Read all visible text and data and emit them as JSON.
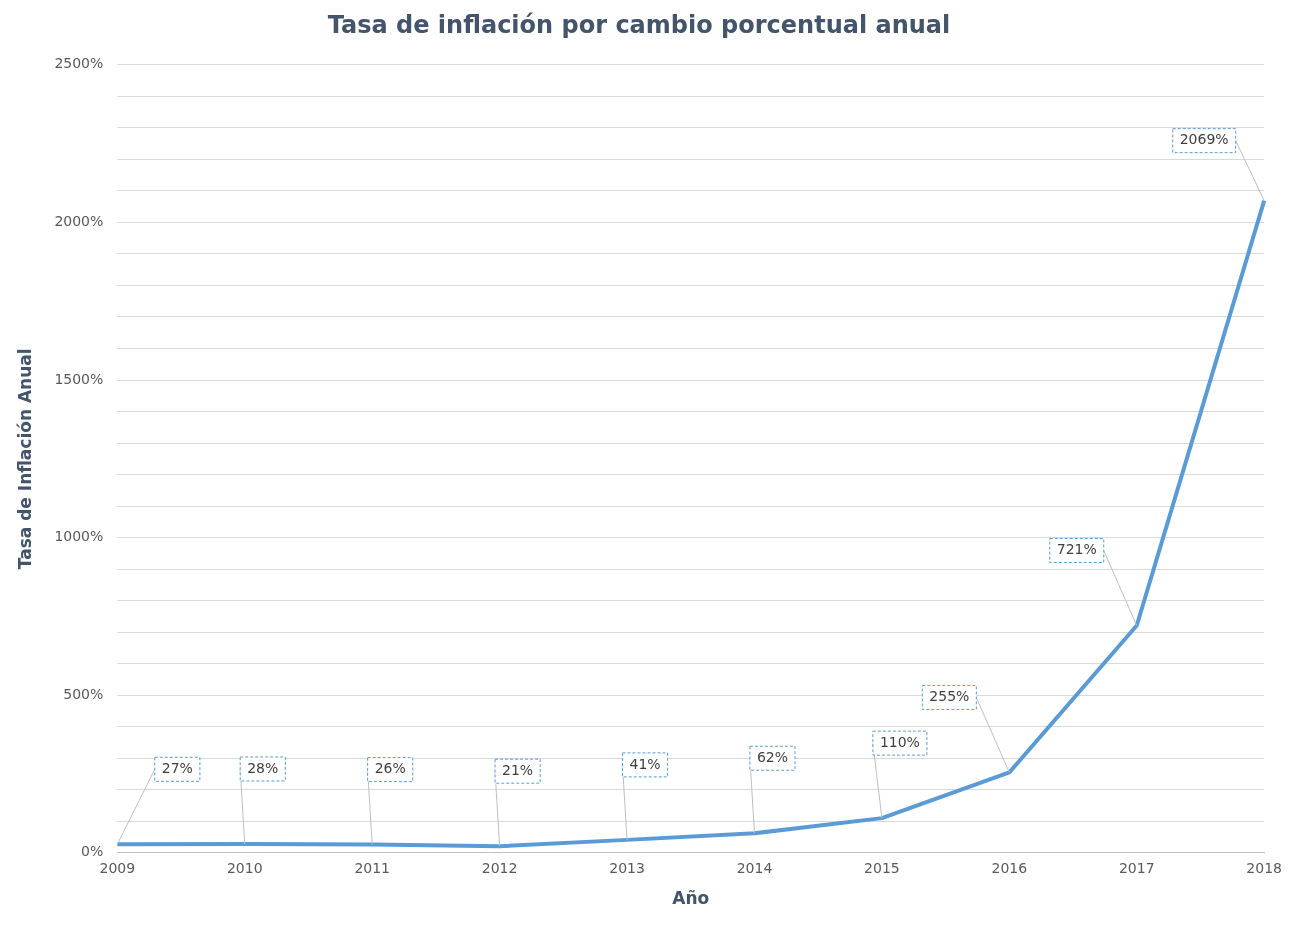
{
  "chart_data": {
    "type": "line",
    "title": "Tasa de inflación por cambio porcentual anual",
    "xlabel": "Año",
    "ylabel": "Tasa de Inflación Anual",
    "categories": [
      "2009",
      "2010",
      "2011",
      "2012",
      "2013",
      "2014",
      "2015",
      "2016",
      "2017",
      "2018"
    ],
    "series": [
      {
        "color": "#5b9bd5",
        "values": [
          27,
          28,
          26,
          21,
          41,
          62,
          110,
          255,
          721,
          2069
        ],
        "value_labels": [
          "27%",
          "28%",
          "26%",
          "21%",
          "41%",
          "62%",
          "110%",
          "255%",
          "721%",
          "2069%"
        ]
      }
    ],
    "ylim": [
      0,
      2500
    ],
    "yticks": [
      {
        "value": 0,
        "label": "0%"
      },
      {
        "value": 100,
        "label": null
      },
      {
        "value": 200,
        "label": null
      },
      {
        "value": 300,
        "label": null
      },
      {
        "value": 400,
        "label": null
      },
      {
        "value": 500,
        "label": "500%"
      },
      {
        "value": 600,
        "label": null
      },
      {
        "value": 700,
        "label": null
      },
      {
        "value": 800,
        "label": null
      },
      {
        "value": 900,
        "label": null
      },
      {
        "value": 1000,
        "label": "1000%"
      },
      {
        "value": 1100,
        "label": null
      },
      {
        "value": 1200,
        "label": null
      },
      {
        "value": 1300,
        "label": null
      },
      {
        "value": 1400,
        "label": null
      },
      {
        "value": 1500,
        "label": "1500%"
      },
      {
        "value": 1600,
        "label": null
      },
      {
        "value": 1700,
        "label": null
      },
      {
        "value": 1800,
        "label": null
      },
      {
        "value": 1900,
        "label": null
      },
      {
        "value": 2000,
        "label": "2000%"
      },
      {
        "value": 2100,
        "label": null
      },
      {
        "value": 2200,
        "label": null
      },
      {
        "value": 2300,
        "label": null
      },
      {
        "value": 2400,
        "label": null
      },
      {
        "value": 2500,
        "label": "2500%"
      }
    ],
    "grid": "y",
    "legend": false,
    "marker": "none",
    "line_style": "solid"
  }
}
